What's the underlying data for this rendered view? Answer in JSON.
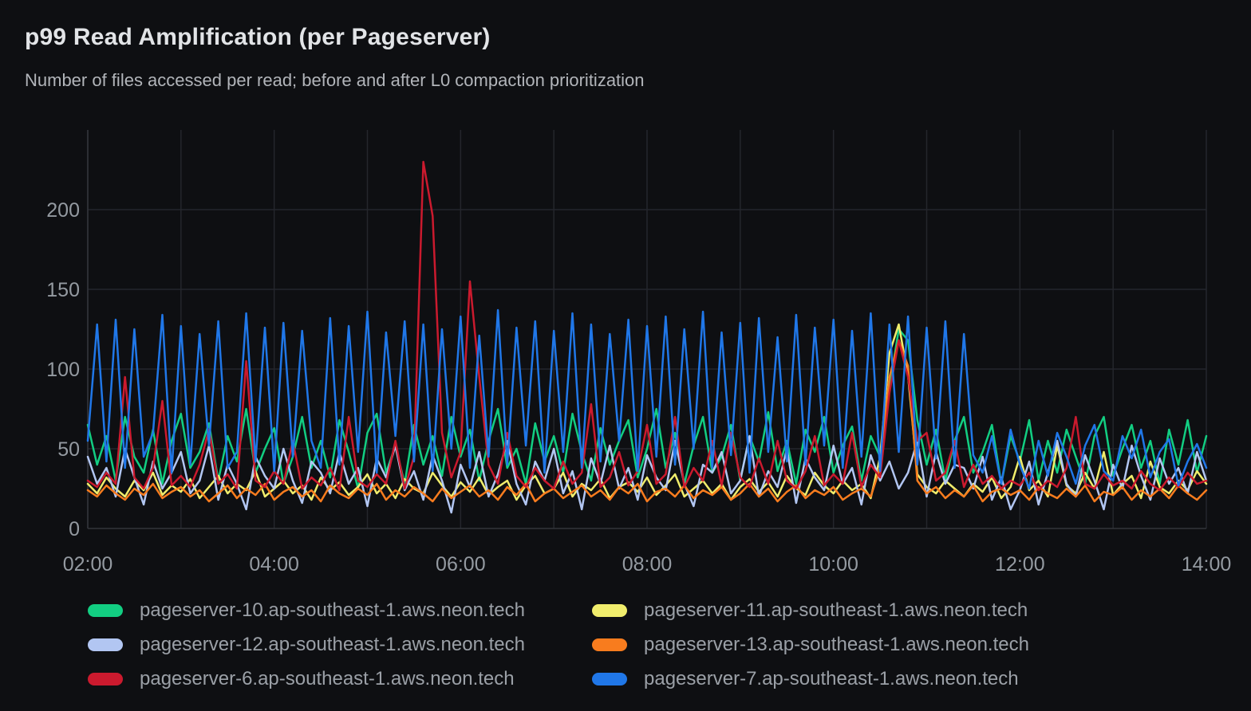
{
  "chart_data": {
    "type": "line",
    "title": "p99 Read Amplification (per Pageserver)",
    "subtitle": "Number of files accessed per read; before and after L0 compaction prioritization",
    "xlim": [
      2,
      14
    ],
    "ylim": [
      0,
      250
    ],
    "x_unit": "time-of-day-hours",
    "x_start_hours": 2.0,
    "x_step_hours": 0.1,
    "grid": true,
    "grid_hours": [
      2,
      3,
      4,
      5,
      6,
      7,
      8,
      9,
      10,
      11,
      12,
      13,
      14
    ],
    "x_ticks": [
      {
        "hours": 2,
        "label": "02:00"
      },
      {
        "hours": 4,
        "label": "04:00"
      },
      {
        "hours": 6,
        "label": "06:00"
      },
      {
        "hours": 8,
        "label": "08:00"
      },
      {
        "hours": 10,
        "label": "10:00"
      },
      {
        "hours": 12,
        "label": "12:00"
      },
      {
        "hours": 14,
        "label": "14:00"
      }
    ],
    "y_ticks": [
      0,
      50,
      100,
      150,
      200
    ],
    "legend_position": "bottom",
    "colors": {
      "background": "#0e0f12",
      "gridline": "#24262c",
      "axis": "#32353b",
      "title_text": "#e2e4e7",
      "subtitle_text": "#b2b5ba",
      "tick_text": "#949aa1",
      "legend_text": "#9ba0a7"
    },
    "series": [
      {
        "name": "pageserver-10.ap-southeast-1.aws.neon.tech",
        "color": "#12ce82",
        "values": [
          65,
          40,
          58,
          30,
          70,
          45,
          35,
          62,
          28,
          55,
          72,
          38,
          48,
          66,
          30,
          58,
          42,
          75,
          35,
          50,
          63,
          28,
          45,
          70,
          38,
          55,
          32,
          68,
          48,
          25,
          60,
          72,
          35,
          52,
          28,
          65,
          40,
          58,
          33,
          70,
          45,
          62,
          30,
          55,
          75,
          38,
          50,
          28,
          66,
          42,
          58,
          35,
          72,
          48,
          30,
          63,
          40,
          55,
          68,
          32,
          50,
          75,
          38,
          60,
          28,
          52,
          70,
          35,
          45,
          65,
          30,
          58,
          42,
          73,
          36,
          55,
          28,
          62,
          48,
          70,
          35,
          52,
          64,
          30,
          58,
          45,
          88,
          125,
          118,
          68,
          40,
          62,
          30,
          55,
          70,
          35,
          48,
          65,
          28,
          58,
          42,
          68,
          30,
          55,
          35,
          62,
          45,
          28,
          58,
          70,
          33,
          50,
          65,
          38,
          55,
          28,
          62,
          40,
          68,
          35,
          58
        ]
      },
      {
        "name": "pageserver-11.ap-southeast-1.aws.neon.tech",
        "color": "#f0ed6c",
        "values": [
          28,
          22,
          32,
          25,
          20,
          30,
          24,
          35,
          21,
          27,
          23,
          31,
          19,
          26,
          33,
          22,
          28,
          24,
          36,
          20,
          25,
          30,
          22,
          27,
          18,
          32,
          24,
          29,
          21,
          26,
          34,
          22,
          28,
          19,
          31,
          25,
          22,
          35,
          27,
          20,
          29,
          23,
          32,
          21,
          26,
          30,
          18,
          27,
          33,
          22,
          25,
          35,
          20,
          28,
          24,
          31,
          19,
          26,
          29,
          23,
          32,
          21,
          27,
          34,
          20,
          25,
          30,
          22,
          28,
          18,
          26,
          31,
          23,
          29,
          20,
          33,
          25,
          21,
          35,
          27,
          22,
          30,
          24,
          28,
          19,
          45,
          110,
          128,
          96,
          34,
          26,
          22,
          30,
          25,
          20,
          28,
          23,
          32,
          19,
          26,
          45,
          24,
          30,
          20,
          52,
          27,
          22,
          35,
          25,
          48,
          21,
          28,
          33,
          19,
          42,
          26,
          22,
          30,
          24,
          36,
          28
        ]
      },
      {
        "name": "pageserver-12.ap-southeast-1.aws.neon.tech",
        "color": "#b2c6f2",
        "values": [
          45,
          28,
          38,
          20,
          50,
          32,
          15,
          42,
          25,
          35,
          48,
          22,
          30,
          52,
          18,
          40,
          28,
          12,
          45,
          33,
          25,
          50,
          30,
          16,
          42,
          35,
          22,
          48,
          28,
          38,
          14,
          44,
          32,
          52,
          24,
          36,
          18,
          46,
          30,
          10,
          40,
          26,
          48,
          20,
          34,
          55,
          28,
          15,
          42,
          30,
          50,
          22,
          36,
          12,
          44,
          28,
          52,
          25,
          38,
          18,
          46,
          32,
          24,
          55,
          28,
          14,
          40,
          35,
          48,
          22,
          30,
          58,
          20,
          36,
          26,
          50,
          16,
          44,
          32,
          24,
          52,
          28,
          38,
          15,
          46,
          30,
          42,
          25,
          35,
          55,
          20,
          48,
          28,
          40,
          38,
          25,
          45,
          18,
          32,
          12,
          24,
          42,
          15,
          35,
          55,
          28,
          20,
          46,
          30,
          12,
          40,
          25,
          52,
          33,
          18,
          44,
          28,
          38,
          22,
          48,
          30
        ]
      },
      {
        "name": "pageserver-13.ap-southeast-1.aws.neon.tech",
        "color": "#f87c1e",
        "values": [
          24,
          20,
          27,
          22,
          18,
          25,
          21,
          28,
          19,
          23,
          26,
          20,
          24,
          17,
          22,
          27,
          19,
          25,
          21,
          28,
          18,
          23,
          26,
          20,
          24,
          17,
          27,
          22,
          19,
          25,
          21,
          28,
          18,
          24,
          20,
          26,
          22,
          17,
          25,
          19,
          23,
          27,
          20,
          24,
          18,
          26,
          21,
          28,
          17,
          22,
          25,
          19,
          23,
          27,
          20,
          24,
          18,
          26,
          22,
          28,
          17,
          23,
          25,
          20,
          27,
          19,
          24,
          21,
          26,
          18,
          22,
          28,
          20,
          25,
          17,
          23,
          27,
          19,
          24,
          21,
          26,
          18,
          22,
          25,
          20,
          38,
          95,
          118,
          102,
          30,
          22,
          26,
          19,
          24,
          20,
          27,
          17,
          23,
          25,
          21,
          24,
          18,
          26,
          22,
          19,
          25,
          20,
          27,
          17,
          23,
          21,
          26,
          18,
          24,
          20,
          25,
          19,
          27,
          22,
          18,
          24
        ]
      },
      {
        "name": "pageserver-6.ap-southeast-1.aws.neon.tech",
        "color": "#cb1a2e",
        "values": [
          30,
          26,
          35,
          28,
          95,
          32,
          25,
          38,
          80,
          27,
          33,
          26,
          40,
          62,
          28,
          34,
          25,
          105,
          30,
          26,
          36,
          28,
          55,
          25,
          32,
          27,
          38,
          24,
          70,
          30,
          26,
          34,
          28,
          55,
          25,
          45,
          230,
          196,
          60,
          32,
          48,
          155,
          95,
          40,
          28,
          60,
          33,
          26,
          38,
          30,
          25,
          42,
          28,
          35,
          78,
          26,
          32,
          48,
          27,
          36,
          65,
          28,
          34,
          70,
          26,
          38,
          30,
          55,
          27,
          60,
          32,
          26,
          44,
          28,
          55,
          30,
          25,
          36,
          58,
          27,
          34,
          28,
          60,
          26,
          40,
          32,
          85,
          118,
          95,
          55,
          60,
          30,
          35,
          55,
          26,
          40,
          28,
          33,
          25,
          30,
          27,
          35,
          24,
          30,
          26,
          38,
          70,
          28,
          25,
          34,
          27,
          30,
          25,
          36,
          28,
          24,
          32,
          26,
          35,
          28,
          30
        ]
      },
      {
        "name": "pageserver-7.ap-southeast-1.aws.neon.tech",
        "color": "#2077e8",
        "values": [
          55,
          128,
          42,
          131,
          38,
          125,
          45,
          60,
          134,
          35,
          127,
          40,
          122,
          52,
          130,
          38,
          48,
          135,
          42,
          126,
          36,
          129,
          45,
          124,
          55,
          38,
          132,
          40,
          127,
          48,
          136,
          35,
          123,
          58,
          130,
          42,
          128,
          36,
          125,
          50,
          133,
          38,
          121,
          45,
          137,
          40,
          126,
          52,
          130,
          35,
          124,
          48,
          135,
          38,
          128,
          42,
          122,
          55,
          131,
          36,
          127,
          45,
          133,
          40,
          125,
          50,
          136,
          38,
          123,
          46,
          129,
          35,
          132,
          48,
          120,
          42,
          134,
          40,
          126,
          52,
          131,
          38,
          124,
          45,
          135,
          36,
          128,
          48,
          133,
          40,
          126,
          44,
          130,
          38,
          122,
          46,
          35,
          58,
          28,
          62,
          40,
          25,
          55,
          33,
          60,
          45,
          28,
          52,
          65,
          36,
          30,
          58,
          44,
          62,
          32,
          48,
          56,
          27,
          42,
          53,
          38
        ]
      }
    ]
  }
}
